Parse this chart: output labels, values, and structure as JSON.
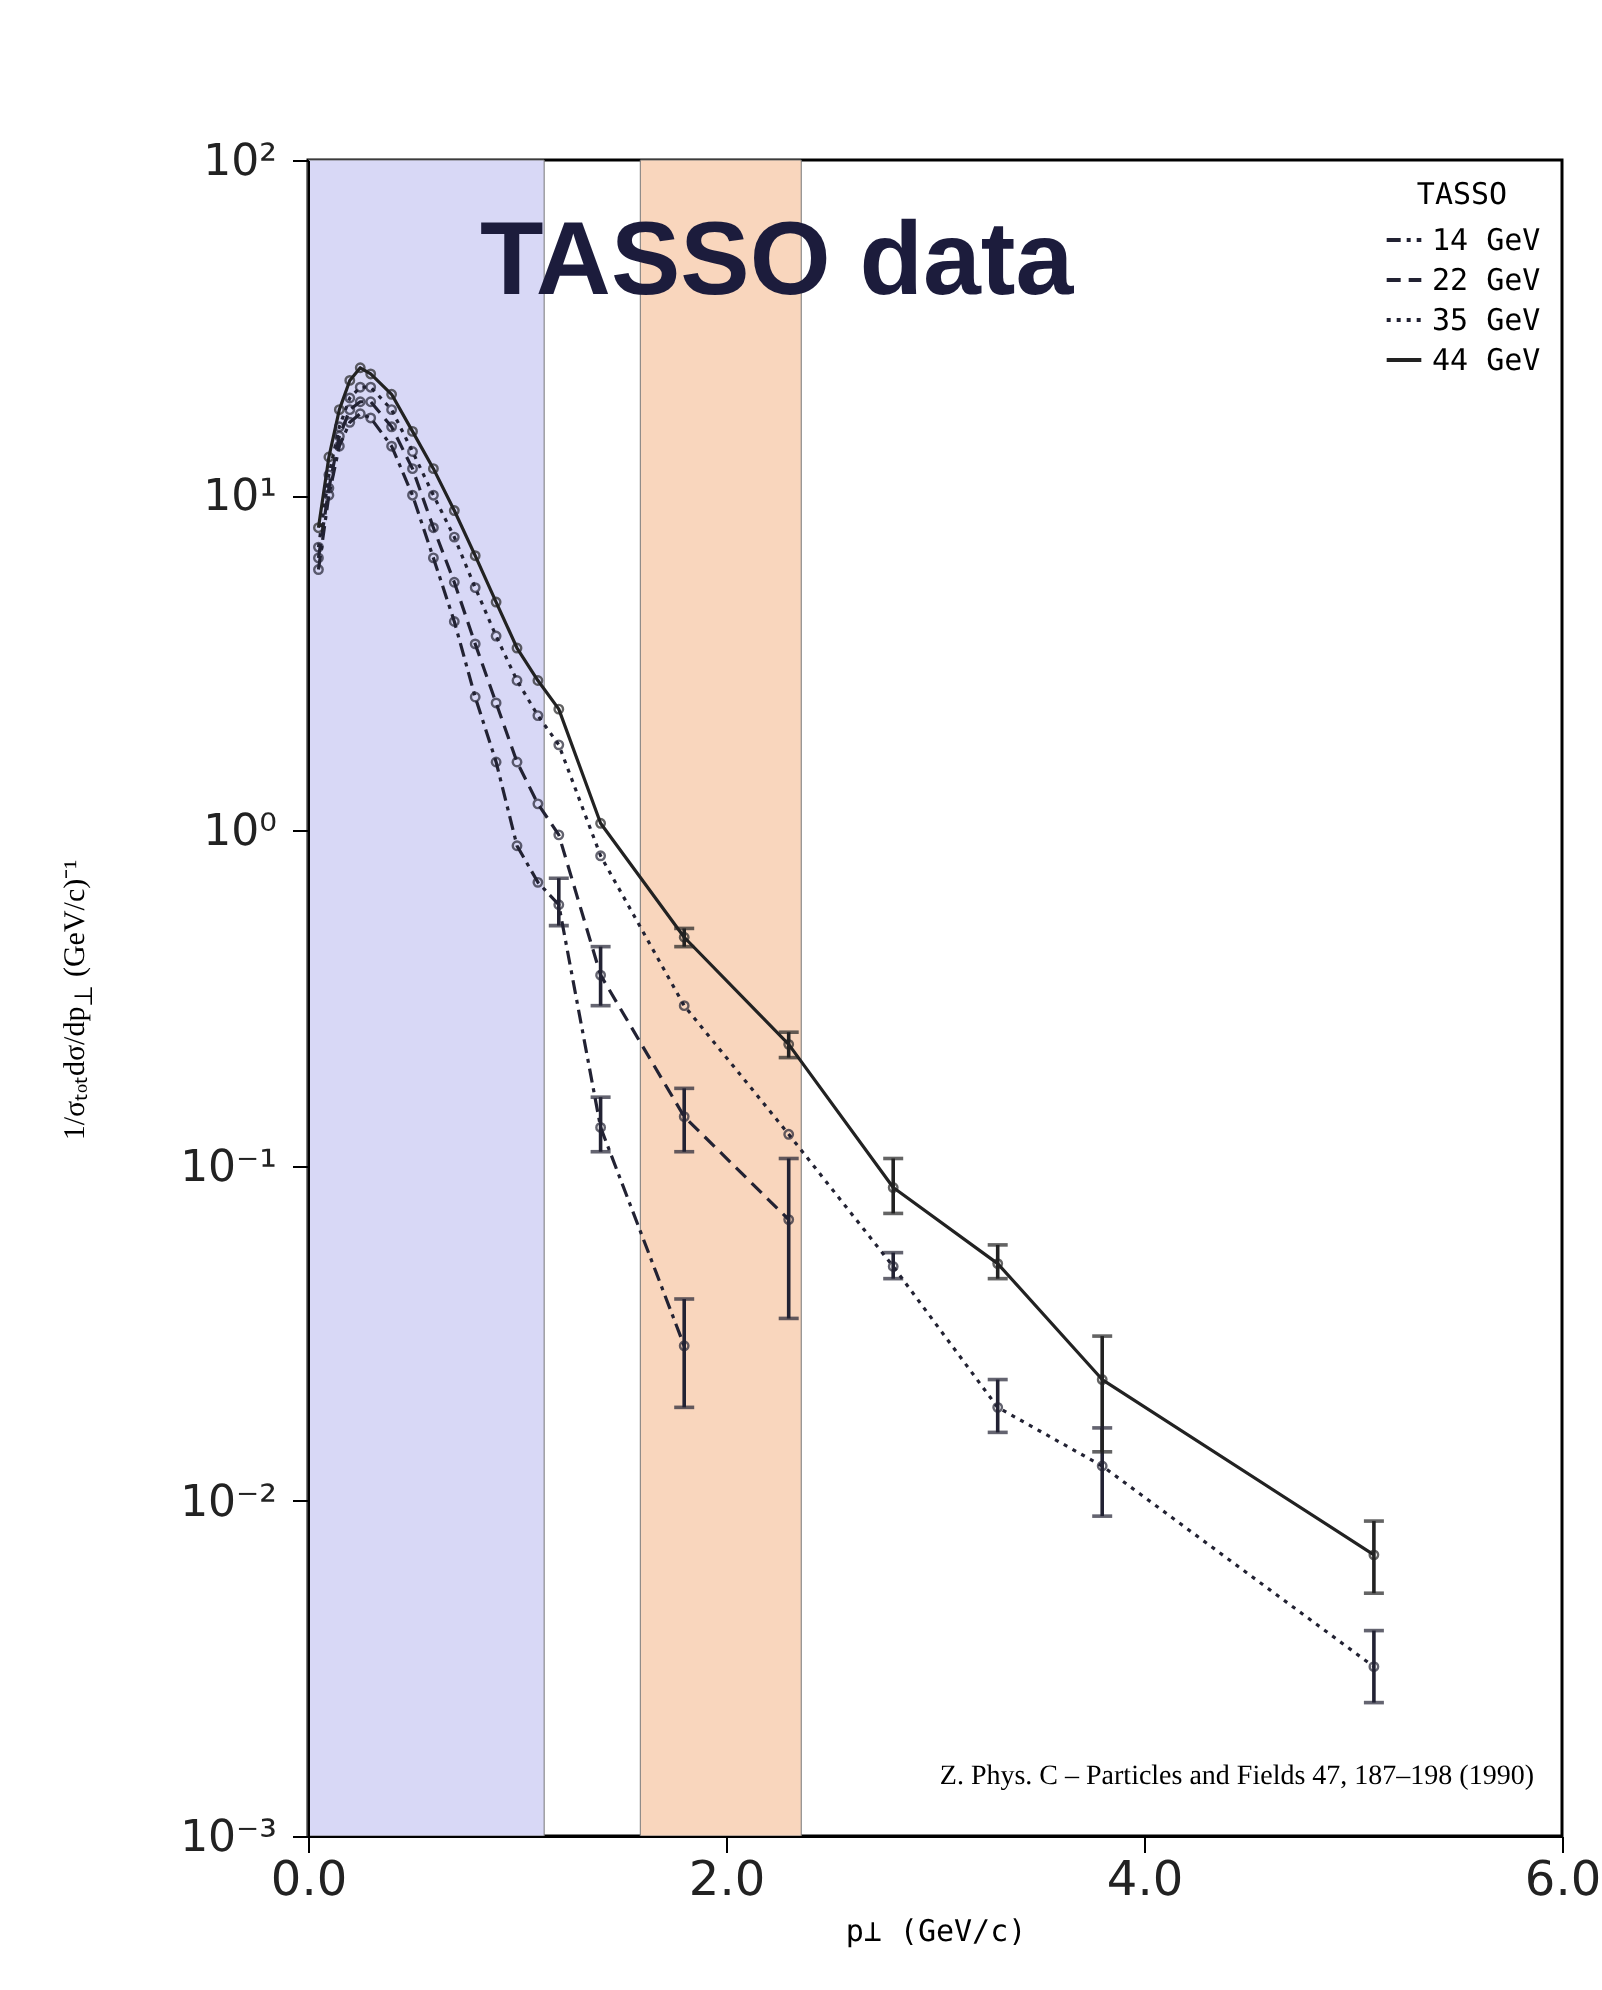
{
  "chart_data": {
    "type": "line",
    "title": "TASSO data",
    "xlabel": "p⊥ (GeV/c)",
    "ylabel": "1/σₜₒₜdσ/dp$_{⊥}$ (GeV/c)⁻¹",
    "legend_title": "TASSO",
    "legend": "top right",
    "log": true,
    "grid": false,
    "marker": "circle",
    "xlim": [
      0,
      6
    ],
    "xticks": [
      {
        "value": 0,
        "label": "0.0"
      },
      {
        "value": 2,
        "label": "2.0"
      },
      {
        "value": 4,
        "label": "4.0"
      },
      {
        "value": 6,
        "label": "6.0"
      }
    ],
    "ylim": [
      0.001,
      100
    ],
    "yticks": [
      {
        "value": 0.001,
        "label": "10⁻³"
      },
      {
        "value": 0.01,
        "label": "10⁻²"
      },
      {
        "value": 0.1,
        "label": "10⁻¹"
      },
      {
        "value": 1,
        "label": "10⁰"
      },
      {
        "value": 10,
        "label": "10¹"
      },
      {
        "value": 100,
        "label": "10²"
      }
    ],
    "bands": [
      {
        "axis": "x",
        "from": 0,
        "to": 1.13,
        "color": "#d8d8f6"
      },
      {
        "axis": "x",
        "from": 1.59,
        "to": 2.36,
        "color": "#f9d6bd"
      }
    ],
    "annotations": [
      "Z. Phys. C – Particles and Fields 47, 187–198 (1990)"
    ],
    "series": [
      {
        "name": "14 GeV",
        "color": "#222233",
        "line_style": "dashdot",
        "x": [
          0.05,
          0.1,
          0.15,
          0.2,
          0.25,
          0.3,
          0.4,
          0.5,
          0.6,
          0.7,
          0.8,
          0.9,
          1.0,
          1.1,
          1.2,
          1.4,
          1.8
        ],
        "values": [
          6,
          10,
          14,
          16.5,
          17.5,
          17,
          14,
          10,
          6.5,
          4.2,
          2.5,
          1.6,
          0.9,
          0.7,
          0.6,
          0.13,
          0.029
        ],
        "errors": [
          null,
          null,
          null,
          null,
          null,
          null,
          null,
          null,
          null,
          null,
          null,
          null,
          null,
          null,
          [
            0.52,
            0.72
          ],
          [
            0.11,
            0.16
          ],
          [
            0.019,
            0.04
          ]
        ]
      },
      {
        "name": "22 GeV",
        "color": "#222233",
        "line_style": "dashed",
        "x": [
          0.05,
          0.1,
          0.15,
          0.2,
          0.25,
          0.3,
          0.4,
          0.5,
          0.6,
          0.7,
          0.8,
          0.9,
          1.0,
          1.1,
          1.2,
          1.4,
          1.8,
          2.3
        ],
        "values": [
          6.5,
          10.5,
          15,
          18,
          19,
          19,
          16,
          12,
          8,
          5.5,
          3.6,
          2.4,
          1.6,
          1.2,
          0.97,
          0.37,
          0.14,
          0.069
        ],
        "errors": [
          null,
          null,
          null,
          null,
          null,
          null,
          null,
          null,
          null,
          null,
          null,
          null,
          null,
          null,
          null,
          [
            0.3,
            0.45
          ],
          [
            0.11,
            0.17
          ],
          [
            0.035,
            0.105
          ]
        ]
      },
      {
        "name": "35 GeV",
        "color": "#222233",
        "line_style": "dotted",
        "x": [
          0.05,
          0.1,
          0.15,
          0.2,
          0.25,
          0.3,
          0.4,
          0.5,
          0.6,
          0.7,
          0.8,
          0.9,
          1.0,
          1.1,
          1.2,
          1.4,
          1.8,
          2.3,
          2.8,
          3.3,
          3.8,
          5.1
        ],
        "values": [
          7,
          11.5,
          16,
          19.5,
          21,
          21,
          18,
          13.5,
          10,
          7.5,
          5.3,
          3.8,
          2.8,
          2.2,
          1.8,
          0.84,
          0.3,
          0.124,
          0.05,
          0.019,
          0.0127,
          0.0032
        ],
        "errors": [
          null,
          null,
          null,
          null,
          null,
          null,
          null,
          null,
          null,
          null,
          null,
          null,
          null,
          null,
          null,
          null,
          null,
          null,
          [
            0.046,
            0.055
          ],
          [
            0.016,
            0.023
          ],
          [
            0.009,
            0.0165
          ],
          [
            0.0025,
            0.0041
          ]
        ]
      },
      {
        "name": "44 GeV",
        "color": "#222222",
        "line_style": "solid",
        "x": [
          0.05,
          0.1,
          0.15,
          0.2,
          0.25,
          0.3,
          0.4,
          0.5,
          0.6,
          0.7,
          0.8,
          0.9,
          1.0,
          1.1,
          1.2,
          1.4,
          1.8,
          2.3,
          2.8,
          3.3,
          3.8,
          5.1
        ],
        "values": [
          8,
          13,
          18,
          22,
          24,
          23,
          20,
          15.5,
          12,
          9,
          6.6,
          4.8,
          3.5,
          2.8,
          2.3,
          1.05,
          0.48,
          0.23,
          0.086,
          0.051,
          0.023,
          0.0069
        ],
        "errors": [
          null,
          null,
          null,
          null,
          null,
          null,
          null,
          null,
          null,
          null,
          null,
          null,
          null,
          null,
          null,
          null,
          [
            0.45,
            0.51
          ],
          [
            0.21,
            0.25
          ],
          [
            0.072,
            0.105
          ],
          [
            0.046,
            0.058
          ],
          [
            0.014,
            0.031
          ],
          [
            0.0053,
            0.0087
          ]
        ]
      }
    ]
  }
}
